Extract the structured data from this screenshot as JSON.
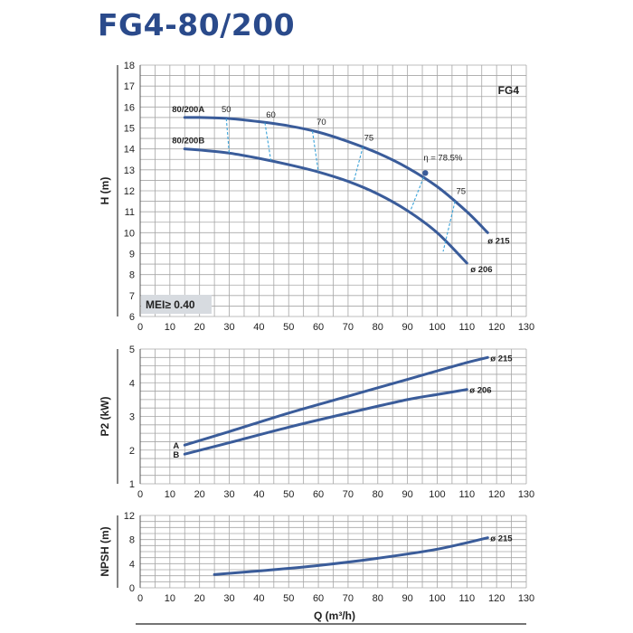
{
  "title": "FG4-80/200",
  "chart_data": [
    {
      "type": "line",
      "name": "head",
      "ylabel": "H (m)",
      "xlim": [
        0,
        130
      ],
      "ylim": [
        6,
        18
      ],
      "xticks": [
        0,
        10,
        20,
        30,
        40,
        50,
        60,
        70,
        80,
        90,
        100,
        110,
        120,
        130
      ],
      "yticks": [
        6,
        7,
        8,
        9,
        10,
        11,
        12,
        13,
        14,
        15,
        16,
        17,
        18
      ],
      "badge": "FG4",
      "mei_label": "MEI≥ 0.40",
      "series": [
        {
          "name": "80/200A",
          "diameter": "ø 215",
          "x": [
            15,
            20,
            30,
            40,
            50,
            60,
            70,
            80,
            90,
            100,
            110,
            117
          ],
          "y": [
            15.5,
            15.5,
            15.45,
            15.3,
            15.1,
            14.8,
            14.35,
            13.8,
            13.1,
            12.2,
            11.0,
            10.0
          ]
        },
        {
          "name": "80/200B",
          "diameter": "ø 206",
          "x": [
            15,
            20,
            30,
            40,
            50,
            60,
            70,
            80,
            90,
            100,
            110
          ],
          "y": [
            14.0,
            13.95,
            13.8,
            13.55,
            13.25,
            12.9,
            12.45,
            11.85,
            11.05,
            10.0,
            8.55
          ]
        }
      ],
      "efficiency_lines": [
        {
          "label": "50",
          "x": [
            29,
            30
          ],
          "y": [
            15.45,
            13.75
          ]
        },
        {
          "label": "60",
          "x": [
            42,
            44
          ],
          "y": [
            15.25,
            13.45
          ]
        },
        {
          "label": "70",
          "x": [
            58,
            60
          ],
          "y": [
            14.85,
            12.9
          ]
        },
        {
          "label": "75",
          "x": [
            75,
            72
          ],
          "y": [
            14.1,
            12.5
          ]
        },
        {
          "label": "75",
          "x": [
            106,
            102
          ],
          "y": [
            11.5,
            9.1
          ]
        }
      ],
      "efficiency_peak": {
        "label": "η = 78.5%",
        "x": 96,
        "y": 12.85,
        "drop": [
          96,
          91,
          11.05
        ]
      },
      "efficiency_labels": [
        {
          "text": "50",
          "x": 29,
          "y": 15.75
        },
        {
          "text": "60",
          "x": 44,
          "y": 15.5
        },
        {
          "text": "70",
          "x": 61,
          "y": 15.15
        },
        {
          "text": "75",
          "x": 77,
          "y": 14.4
        },
        {
          "text": "75",
          "x": 108,
          "y": 11.85
        }
      ]
    },
    {
      "type": "line",
      "name": "power",
      "ylabel": "P2 (kW)",
      "xlim": [
        0,
        130
      ],
      "ylim": [
        1,
        5
      ],
      "xticks": [
        0,
        10,
        20,
        30,
        40,
        50,
        60,
        70,
        80,
        90,
        100,
        110,
        120,
        130
      ],
      "yticks": [
        1,
        2,
        3,
        4,
        5
      ],
      "series": [
        {
          "name": "A",
          "diameter": "ø 215",
          "x": [
            15,
            30,
            50,
            70,
            90,
            100,
            110,
            117
          ],
          "y": [
            2.15,
            2.55,
            3.1,
            3.6,
            4.1,
            4.35,
            4.6,
            4.75
          ]
        },
        {
          "name": "B",
          "diameter": "ø 206",
          "x": [
            15,
            30,
            50,
            70,
            90,
            100,
            110
          ],
          "y": [
            1.88,
            2.22,
            2.68,
            3.1,
            3.5,
            3.65,
            3.8
          ]
        }
      ]
    },
    {
      "type": "line",
      "name": "npsh",
      "ylabel": "NPSH (m)",
      "xlabel": "Q (m³/h)",
      "xlim": [
        0,
        130
      ],
      "ylim": [
        0,
        12
      ],
      "xticks": [
        0,
        10,
        20,
        30,
        40,
        50,
        60,
        70,
        80,
        90,
        100,
        110,
        120,
        130
      ],
      "yticks": [
        0,
        4,
        8,
        12
      ],
      "series": [
        {
          "name": "",
          "diameter": "ø 215",
          "x": [
            25,
            40,
            60,
            80,
            100,
            117
          ],
          "y": [
            2.2,
            2.8,
            3.7,
            4.9,
            6.4,
            8.3
          ]
        }
      ]
    }
  ]
}
